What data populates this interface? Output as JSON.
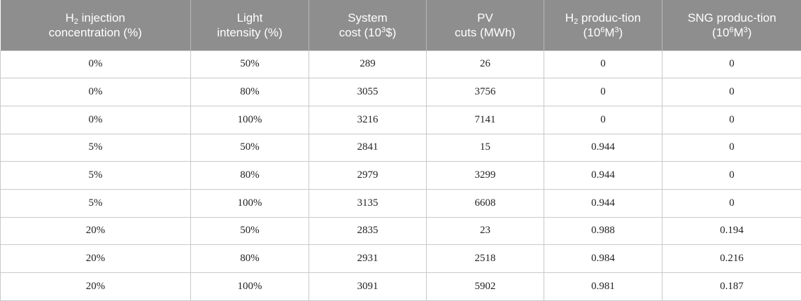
{
  "table": {
    "headers": [
      {
        "line1": {
          "pre": "H",
          "sub": "2",
          "post": " injection"
        },
        "line2": {
          "pre": "concentration (%)"
        }
      },
      {
        "line1": {
          "pre": "Light"
        },
        "line2": {
          "pre": "intensity (%)"
        }
      },
      {
        "line1": {
          "pre": "System"
        },
        "line2": {
          "pre": "cost (10",
          "sup": "3",
          "post": "$)"
        }
      },
      {
        "line1": {
          "pre": "PV"
        },
        "line2": {
          "pre": "cuts (MWh)"
        }
      },
      {
        "line1": {
          "pre": "H",
          "sub": "2",
          "post": " produc-tion"
        },
        "line2": {
          "pre": "(10",
          "sup": "6",
          "post": "M",
          "sup2": "3",
          "post2": ")"
        }
      },
      {
        "line1": {
          "pre": "SNG produc-tion"
        },
        "line2": {
          "pre": "(10",
          "sup": "6",
          "post": "M",
          "sup2": "3",
          "post2": ")"
        }
      }
    ],
    "rows": [
      [
        "0%",
        "50%",
        "289",
        "26",
        "0",
        "0"
      ],
      [
        "0%",
        "80%",
        "3055",
        "3756",
        "0",
        "0"
      ],
      [
        "0%",
        "100%",
        "3216",
        "7141",
        "0",
        "0"
      ],
      [
        "5%",
        "50%",
        "2841",
        "15",
        "0.944",
        "0"
      ],
      [
        "5%",
        "80%",
        "2979",
        "3299",
        "0.944",
        "0"
      ],
      [
        "5%",
        "100%",
        "3135",
        "6608",
        "0.944",
        "0"
      ],
      [
        "20%",
        "50%",
        "2835",
        "23",
        "0.988",
        "0.194"
      ],
      [
        "20%",
        "80%",
        "2931",
        "2518",
        "0.984",
        "0.216"
      ],
      [
        "20%",
        "100%",
        "3091",
        "5902",
        "0.981",
        "0.187"
      ]
    ]
  }
}
